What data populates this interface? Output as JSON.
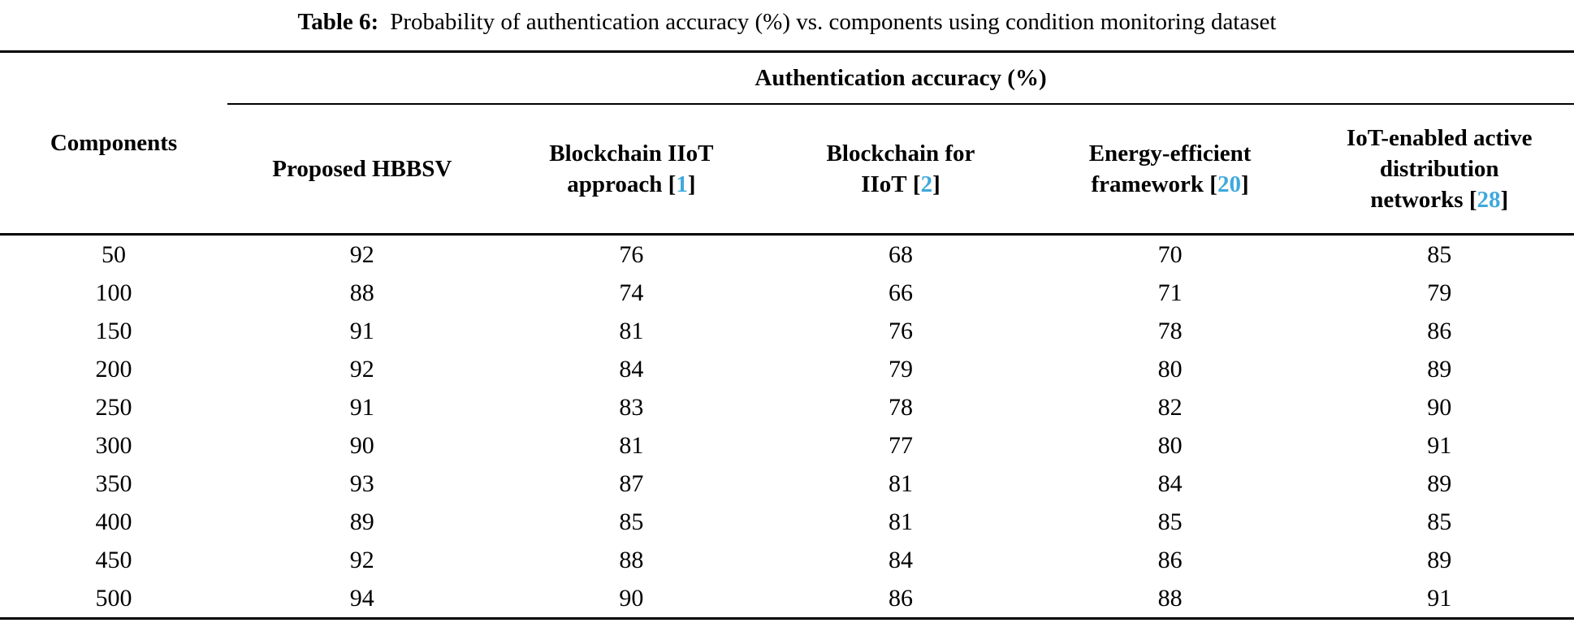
{
  "caption": {
    "label": "Table 6:",
    "text": "Probability of authentication accuracy (%) vs. components using condition monitoring dataset"
  },
  "table": {
    "corner_header": "Components",
    "span_header": "Authentication accuracy (%)",
    "method_columns": [
      {
        "lines": [
          "Proposed HBBSV"
        ],
        "cite": null
      },
      {
        "lines": [
          "Blockchain IIoT",
          "approach"
        ],
        "cite": "1"
      },
      {
        "lines": [
          "Blockchain for",
          "IIoT"
        ],
        "cite": "2"
      },
      {
        "lines": [
          "Energy-efficient",
          "framework"
        ],
        "cite": "20"
      },
      {
        "lines": [
          "IoT-enabled active",
          "distribution",
          "networks"
        ],
        "cite": "28"
      }
    ],
    "rows": [
      {
        "components": "50",
        "values": [
          "92",
          "76",
          "68",
          "70",
          "85"
        ]
      },
      {
        "components": "100",
        "values": [
          "88",
          "74",
          "66",
          "71",
          "79"
        ]
      },
      {
        "components": "150",
        "values": [
          "91",
          "81",
          "76",
          "78",
          "86"
        ]
      },
      {
        "components": "200",
        "values": [
          "92",
          "84",
          "79",
          "80",
          "89"
        ]
      },
      {
        "components": "250",
        "values": [
          "91",
          "83",
          "78",
          "82",
          "90"
        ]
      },
      {
        "components": "300",
        "values": [
          "90",
          "81",
          "77",
          "80",
          "91"
        ]
      },
      {
        "components": "350",
        "values": [
          "93",
          "87",
          "81",
          "84",
          "89"
        ]
      },
      {
        "components": "400",
        "values": [
          "89",
          "85",
          "81",
          "85",
          "85"
        ]
      },
      {
        "components": "450",
        "values": [
          "92",
          "88",
          "84",
          "86",
          "89"
        ]
      },
      {
        "components": "500",
        "values": [
          "94",
          "90",
          "86",
          "88",
          "91"
        ]
      }
    ]
  },
  "colors": {
    "citation_blue": "#3fa9dc",
    "text": "#000000",
    "rule": "#000000",
    "background": "#ffffff"
  }
}
